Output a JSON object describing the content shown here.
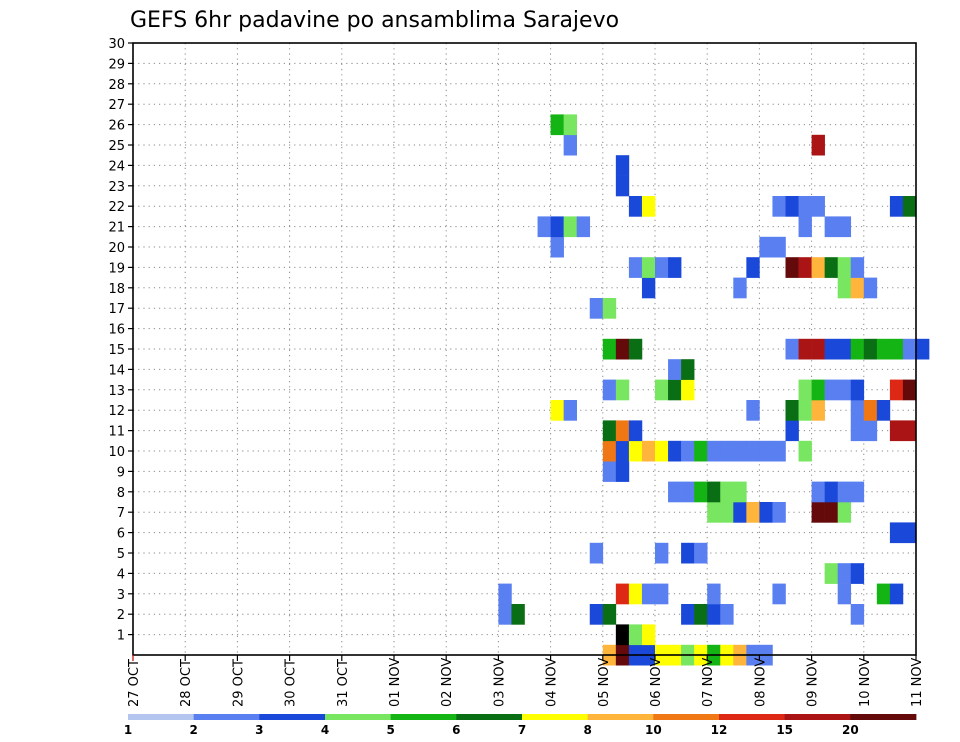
{
  "chart_data": {
    "type": "heatmap",
    "title": "GEFS 6hr padavine po ansamblima Sarajevo",
    "x_tick_labels": [
      "27 OCT",
      "28 OCT",
      "29 OCT",
      "30 OCT",
      "31 OCT",
      "01 NOV",
      "02 NOV",
      "03 NOV",
      "04 NOV",
      "05 NOV",
      "06 NOV",
      "07 NOV",
      "08 NOV",
      "09 NOV",
      "10 NOV",
      "11 NOV"
    ],
    "y_tick_labels": [
      "1",
      "2",
      "3",
      "4",
      "5",
      "6",
      "7",
      "8",
      "9",
      "10",
      "11",
      "12",
      "13",
      "14",
      "15",
      "16",
      "17",
      "18",
      "19",
      "20",
      "21",
      "22",
      "23",
      "24",
      "25",
      "26",
      "27",
      "28",
      "29",
      "30"
    ],
    "xlim": [
      0,
      15
    ],
    "ylim": [
      0,
      30
    ],
    "grid": true,
    "colorbar": {
      "labels": [
        "1",
        "2",
        "3",
        "4",
        "5",
        "6",
        "7",
        "8",
        "10",
        "12",
        "15",
        "20"
      ],
      "colors": [
        "#b4c6f0",
        "#5a7ff0",
        "#1a48d8",
        "#78e660",
        "#14b414",
        "#0a6e14",
        "#ffff00",
        "#ffb43c",
        "#f07814",
        "#dc2814",
        "#aa1414",
        "#640a0a"
      ],
      "thresholds": [
        1,
        2,
        3,
        4,
        5,
        6,
        7,
        8,
        10,
        12,
        15,
        20
      ]
    },
    "cells": [
      [
        9.0,
        0,
        7
      ],
      [
        9.25,
        0,
        11
      ],
      [
        9.5,
        0,
        2
      ],
      [
        9.75,
        0,
        2
      ],
      [
        10.0,
        0,
        6
      ],
      [
        10.25,
        0,
        6
      ],
      [
        10.5,
        0,
        3
      ],
      [
        10.75,
        0,
        6
      ],
      [
        11.0,
        0,
        4
      ],
      [
        11.25,
        0,
        6
      ],
      [
        11.5,
        0,
        7
      ],
      [
        11.75,
        0,
        1
      ],
      [
        12.0,
        0,
        1
      ],
      [
        9.25,
        1,
        12
      ],
      [
        9.5,
        1,
        3
      ],
      [
        9.75,
        1,
        6
      ],
      [
        7.0,
        2,
        1
      ],
      [
        7.25,
        2,
        5
      ],
      [
        8.75,
        2,
        2
      ],
      [
        9.0,
        2,
        5
      ],
      [
        10.5,
        2,
        2
      ],
      [
        10.75,
        2,
        5
      ],
      [
        11.0,
        2,
        2
      ],
      [
        11.25,
        2,
        1
      ],
      [
        13.75,
        2,
        1
      ],
      [
        7.0,
        3,
        1
      ],
      [
        9.25,
        3,
        9
      ],
      [
        9.5,
        3,
        6
      ],
      [
        9.75,
        3,
        1
      ],
      [
        10.0,
        3,
        1
      ],
      [
        11.0,
        3,
        1
      ],
      [
        12.25,
        3,
        1
      ],
      [
        13.5,
        3,
        1
      ],
      [
        14.25,
        3,
        4
      ],
      [
        14.5,
        3,
        2
      ],
      [
        13.25,
        4,
        3
      ],
      [
        13.5,
        4,
        1
      ],
      [
        13.75,
        4,
        2
      ],
      [
        8.75,
        5,
        1
      ],
      [
        10.0,
        5,
        1
      ],
      [
        10.5,
        5,
        2
      ],
      [
        10.75,
        5,
        1
      ],
      [
        14.5,
        6,
        2
      ],
      [
        14.75,
        6,
        2
      ],
      [
        11.0,
        7,
        3
      ],
      [
        11.25,
        7,
        3
      ],
      [
        11.5,
        7,
        2
      ],
      [
        11.75,
        7,
        7
      ],
      [
        12.0,
        7,
        2
      ],
      [
        12.25,
        7,
        1
      ],
      [
        13.0,
        7,
        11
      ],
      [
        13.25,
        7,
        11
      ],
      [
        13.5,
        7,
        3
      ],
      [
        10.25,
        8,
        1
      ],
      [
        10.5,
        8,
        1
      ],
      [
        10.75,
        8,
        4
      ],
      [
        11.0,
        8,
        5
      ],
      [
        11.25,
        8,
        3
      ],
      [
        11.5,
        8,
        3
      ],
      [
        13.0,
        8,
        1
      ],
      [
        13.25,
        8,
        2
      ],
      [
        13.5,
        8,
        1
      ],
      [
        13.75,
        8,
        1
      ],
      [
        9.0,
        9,
        1
      ],
      [
        9.25,
        9,
        2
      ],
      [
        9.0,
        10,
        8
      ],
      [
        9.25,
        10,
        2
      ],
      [
        9.5,
        10,
        6
      ],
      [
        9.75,
        10,
        7
      ],
      [
        10.0,
        10,
        6
      ],
      [
        10.25,
        10,
        2
      ],
      [
        10.5,
        10,
        1
      ],
      [
        10.75,
        10,
        4
      ],
      [
        11.0,
        10,
        1
      ],
      [
        11.25,
        10,
        1
      ],
      [
        11.5,
        10,
        1
      ],
      [
        11.75,
        10,
        1
      ],
      [
        12.0,
        10,
        1
      ],
      [
        12.25,
        10,
        1
      ],
      [
        12.75,
        10,
        3
      ],
      [
        9.0,
        11,
        5
      ],
      [
        9.25,
        11,
        8
      ],
      [
        9.5,
        11,
        2
      ],
      [
        12.5,
        11,
        2
      ],
      [
        13.75,
        11,
        1
      ],
      [
        14.0,
        11,
        1
      ],
      [
        14.5,
        11,
        10
      ],
      [
        14.75,
        11,
        10
      ],
      [
        8.0,
        12,
        6
      ],
      [
        8.25,
        12,
        1
      ],
      [
        11.75,
        12,
        1
      ],
      [
        12.5,
        12,
        5
      ],
      [
        12.75,
        12,
        3
      ],
      [
        13.0,
        12,
        7
      ],
      [
        13.75,
        12,
        1
      ],
      [
        14.0,
        12,
        8
      ],
      [
        14.25,
        12,
        2
      ],
      [
        9.0,
        13,
        1
      ],
      [
        9.25,
        13,
        3
      ],
      [
        10.0,
        13,
        3
      ],
      [
        10.25,
        13,
        5
      ],
      [
        10.5,
        13,
        6
      ],
      [
        12.75,
        13,
        3
      ],
      [
        13.0,
        13,
        4
      ],
      [
        13.25,
        13,
        1
      ],
      [
        13.5,
        13,
        1
      ],
      [
        13.75,
        13,
        2
      ],
      [
        14.5,
        13,
        9
      ],
      [
        14.75,
        13,
        11
      ],
      [
        10.25,
        14,
        1
      ],
      [
        10.5,
        14,
        5
      ],
      [
        9.0,
        15,
        4
      ],
      [
        9.25,
        15,
        11
      ],
      [
        9.5,
        15,
        5
      ],
      [
        12.5,
        15,
        1
      ],
      [
        12.75,
        15,
        10
      ],
      [
        13.0,
        15,
        10
      ],
      [
        13.25,
        15,
        2
      ],
      [
        13.5,
        15,
        2
      ],
      [
        13.75,
        15,
        4
      ],
      [
        14.0,
        15,
        5
      ],
      [
        14.25,
        15,
        4
      ],
      [
        14.5,
        15,
        4
      ],
      [
        14.75,
        15,
        1
      ],
      [
        15.0,
        15,
        2
      ],
      [
        8.75,
        17,
        1
      ],
      [
        9.0,
        17,
        3
      ],
      [
        9.75,
        18,
        2
      ],
      [
        11.5,
        18,
        1
      ],
      [
        13.5,
        18,
        3
      ],
      [
        13.75,
        18,
        7
      ],
      [
        14.0,
        18,
        1
      ],
      [
        9.5,
        19,
        1
      ],
      [
        9.75,
        19,
        3
      ],
      [
        10.0,
        19,
        1
      ],
      [
        10.25,
        19,
        2
      ],
      [
        11.75,
        19,
        2
      ],
      [
        12.5,
        19,
        11
      ],
      [
        12.75,
        19,
        10
      ],
      [
        13.0,
        19,
        7
      ],
      [
        13.25,
        19,
        5
      ],
      [
        13.5,
        19,
        3
      ],
      [
        13.75,
        19,
        1
      ],
      [
        8.0,
        20,
        1
      ],
      [
        12.0,
        20,
        1
      ],
      [
        12.25,
        20,
        1
      ],
      [
        7.75,
        21,
        1
      ],
      [
        8.0,
        21,
        2
      ],
      [
        8.25,
        21,
        3
      ],
      [
        8.5,
        21,
        1
      ],
      [
        12.75,
        21,
        1
      ],
      [
        13.25,
        21,
        1
      ],
      [
        13.5,
        21,
        1
      ],
      [
        9.5,
        22,
        2
      ],
      [
        9.75,
        22,
        6
      ],
      [
        12.25,
        22,
        1
      ],
      [
        12.5,
        22,
        2
      ],
      [
        12.75,
        22,
        1
      ],
      [
        13.0,
        22,
        1
      ],
      [
        14.5,
        22,
        2
      ],
      [
        14.75,
        22,
        5
      ],
      [
        9.25,
        23,
        2
      ],
      [
        9.25,
        24,
        2
      ],
      [
        8.25,
        25,
        1
      ],
      [
        13.0,
        25,
        10
      ],
      [
        8.0,
        26,
        4
      ],
      [
        8.25,
        26,
        3
      ]
    ]
  }
}
